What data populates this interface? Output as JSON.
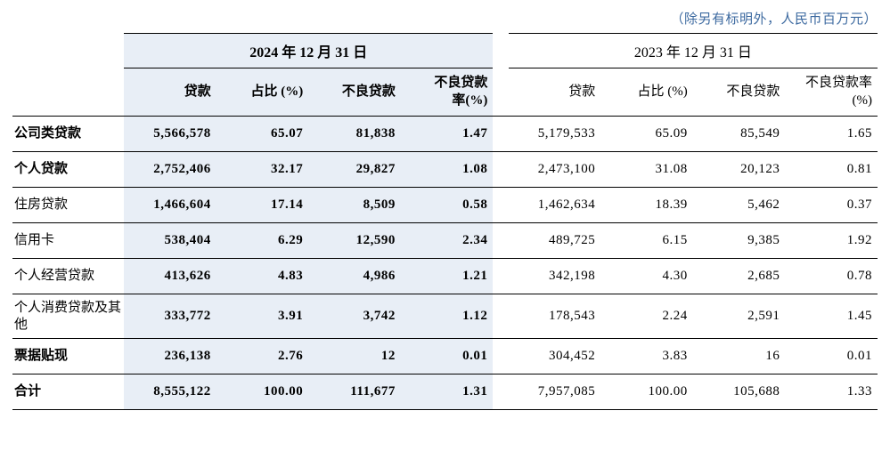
{
  "unit_note": "（除另有标明外，人民币百万元）",
  "periods": {
    "left": "2024 年 12 月 31 日",
    "right": "2023 年 12 月 31 日"
  },
  "cols": {
    "loan": "贷款",
    "pct": "占比 (%)",
    "npl": "不良贷款",
    "nplrL": "不良贷款率(%)",
    "nplrR": "不良贷款率(%)"
  },
  "rows": [
    {
      "label": "公司类贷款",
      "bold": true,
      "L": [
        "5,566,578",
        "65.07",
        "81,838",
        "1.47"
      ],
      "R": [
        "5,179,533",
        "65.09",
        "85,549",
        "1.65"
      ]
    },
    {
      "label": "个人贷款",
      "bold": true,
      "L": [
        "2,752,406",
        "32.17",
        "29,827",
        "1.08"
      ],
      "R": [
        "2,473,100",
        "31.08",
        "20,123",
        "0.81"
      ]
    },
    {
      "label": "住房贷款",
      "bold": false,
      "L": [
        "1,466,604",
        "17.14",
        "8,509",
        "0.58"
      ],
      "R": [
        "1,462,634",
        "18.39",
        "5,462",
        "0.37"
      ]
    },
    {
      "label": "信用卡",
      "bold": false,
      "L": [
        "538,404",
        "6.29",
        "12,590",
        "2.34"
      ],
      "R": [
        "489,725",
        "6.15",
        "9,385",
        "1.92"
      ]
    },
    {
      "label": "个人经营贷款",
      "bold": false,
      "L": [
        "413,626",
        "4.83",
        "4,986",
        "1.21"
      ],
      "R": [
        "342,198",
        "4.30",
        "2,685",
        "0.78"
      ]
    },
    {
      "label": "个人消费贷款及其他",
      "bold": false,
      "multi": true,
      "L": [
        "333,772",
        "3.91",
        "3,742",
        "1.12"
      ],
      "R": [
        "178,543",
        "2.24",
        "2,591",
        "1.45"
      ]
    },
    {
      "label": "票据贴现",
      "bold": true,
      "L": [
        "236,138",
        "2.76",
        "12",
        "0.01"
      ],
      "R": [
        "304,452",
        "3.83",
        "16",
        "0.01"
      ]
    },
    {
      "label": "合计",
      "bold": true,
      "total": true,
      "L": [
        "8,555,122",
        "100.00",
        "111,677",
        "1.31"
      ],
      "R": [
        "7,957,085",
        "100.00",
        "105,688",
        "1.33"
      ]
    }
  ]
}
